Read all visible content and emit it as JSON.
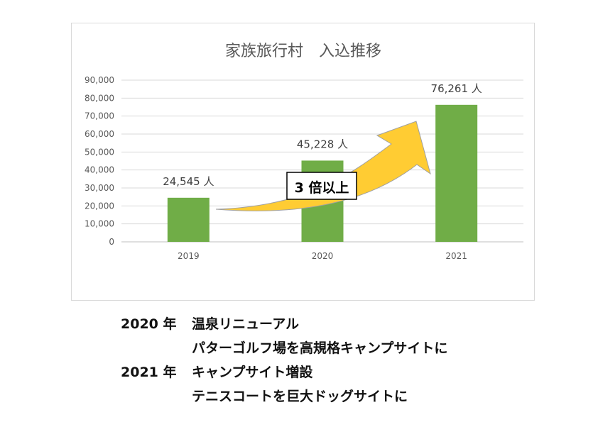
{
  "chart_data": {
    "type": "bar",
    "title": "家族旅行村　入込推移",
    "categories": [
      "2019",
      "2020",
      "2021"
    ],
    "values": [
      24545,
      45228,
      76261
    ],
    "data_labels": [
      "24,545 人",
      "45,228 人",
      "76,261 人"
    ],
    "yticks": [
      "0",
      "10,000",
      "20,000",
      "30,000",
      "40,000",
      "50,000",
      "60,000",
      "70,000",
      "80,000",
      "90,000"
    ],
    "ylim": [
      0,
      90000
    ],
    "grid": true,
    "bar_color": "#70AD47",
    "annotation": {
      "text": "3 倍以上",
      "arrow_color": "#FFCC33",
      "arrow_outline": "#A0A0A0"
    }
  },
  "notes": [
    {
      "year": "2020 年",
      "lines": [
        "温泉リニューアル",
        "パターゴルフ場を高規格キャンプサイトに"
      ]
    },
    {
      "year": "2021 年",
      "lines": [
        "キャンプサイト増設",
        "テニスコートを巨大ドッグサイトに"
      ]
    }
  ]
}
